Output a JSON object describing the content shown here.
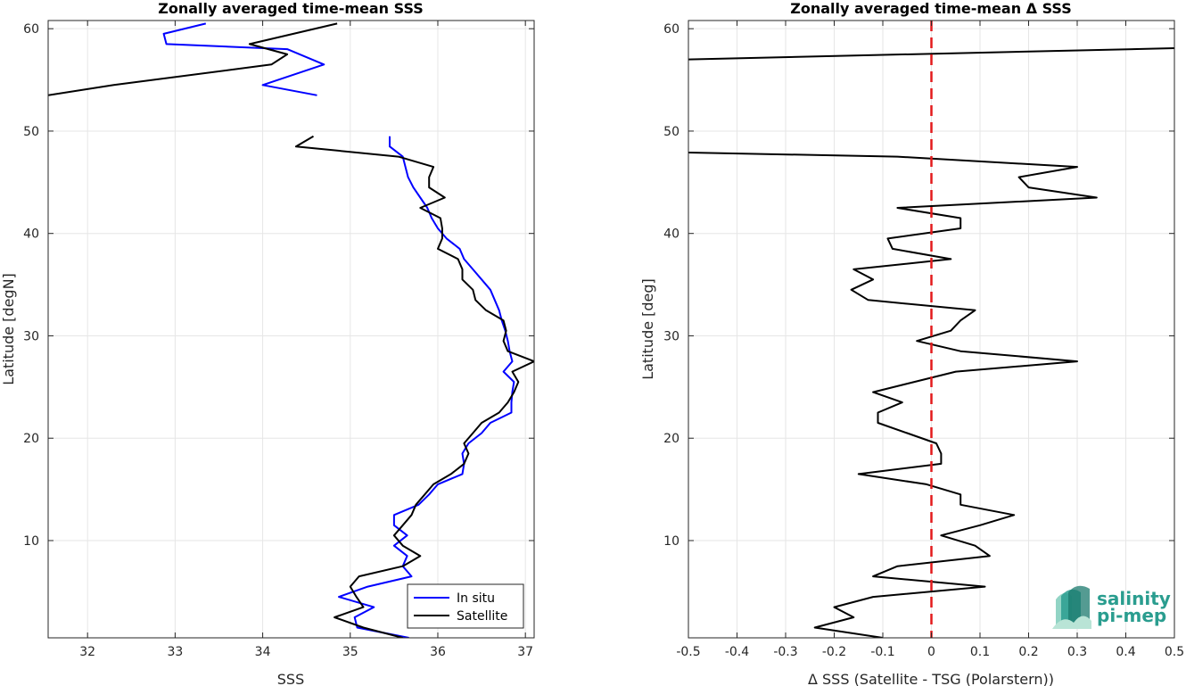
{
  "chart_data": [
    {
      "type": "line",
      "title": "Zonally averaged time-mean SSS",
      "xlabel": "SSS",
      "ylabel": "Latitude [degN]",
      "xlim": [
        31.55,
        37.1
      ],
      "ylim": [
        0.5,
        60.8
      ],
      "xticks": [
        32,
        33,
        34,
        35,
        36,
        37
      ],
      "yticks": [
        10,
        20,
        30,
        40,
        50,
        60
      ],
      "grid": true,
      "legend_position": "bottom-right",
      "series": [
        {
          "name": "In situ",
          "color": "#0000ff",
          "segments": [
            [
              [
                33.35,
                60.5
              ],
              [
                32.87,
                59.5
              ],
              [
                32.9,
                58.5
              ],
              [
                34.28,
                58.0
              ],
              [
                34.7,
                56.5
              ],
              [
                34.0,
                54.5
              ],
              [
                34.62,
                53.5
              ]
            ],
            [
              [
                35.45,
                49.5
              ],
              [
                35.45,
                48.5
              ],
              [
                35.6,
                47.5
              ],
              [
                35.66,
                45.5
              ],
              [
                35.72,
                44.5
              ],
              [
                35.8,
                43.5
              ],
              [
                35.88,
                42.5
              ],
              [
                35.93,
                41.5
              ],
              [
                36.0,
                40.5
              ],
              [
                36.1,
                39.5
              ],
              [
                36.25,
                38.5
              ],
              [
                36.3,
                37.5
              ],
              [
                36.4,
                36.5
              ],
              [
                36.5,
                35.5
              ],
              [
                36.6,
                34.5
              ],
              [
                36.65,
                33.5
              ],
              [
                36.7,
                32.5
              ],
              [
                36.73,
                31.5
              ],
              [
                36.77,
                30.5
              ],
              [
                36.8,
                29.5
              ],
              [
                36.82,
                28.5
              ],
              [
                36.85,
                27.5
              ],
              [
                36.75,
                26.5
              ],
              [
                36.87,
                25.5
              ],
              [
                36.85,
                24.5
              ],
              [
                36.84,
                23.5
              ],
              [
                36.84,
                22.5
              ],
              [
                36.6,
                21.5
              ],
              [
                36.5,
                20.5
              ],
              [
                36.35,
                19.5
              ],
              [
                36.28,
                18.5
              ],
              [
                36.3,
                17.5
              ],
              [
                36.28,
                16.5
              ],
              [
                36.0,
                15.5
              ],
              [
                35.9,
                14.5
              ],
              [
                35.78,
                13.5
              ],
              [
                35.5,
                12.5
              ],
              [
                35.5,
                11.5
              ],
              [
                35.65,
                10.5
              ],
              [
                35.5,
                9.5
              ],
              [
                35.65,
                8.5
              ],
              [
                35.6,
                7.5
              ],
              [
                35.7,
                6.5
              ],
              [
                35.2,
                5.5
              ],
              [
                34.87,
                4.5
              ],
              [
                35.27,
                3.5
              ],
              [
                35.05,
                2.5
              ],
              [
                35.08,
                1.5
              ],
              [
                35.67,
                0.5
              ]
            ]
          ]
        },
        {
          "name": "Satellite",
          "color": "#000000",
          "segments": [
            [
              [
                34.85,
                60.5
              ],
              [
                33.85,
                58.5
              ],
              [
                34.28,
                57.5
              ],
              [
                34.1,
                56.5
              ],
              [
                32.3,
                54.5
              ],
              [
                31.55,
                53.5
              ]
            ],
            [
              [
                34.58,
                49.5
              ],
              [
                34.38,
                48.5
              ],
              [
                35.55,
                47.5
              ],
              [
                35.95,
                46.5
              ],
              [
                35.9,
                45.5
              ],
              [
                35.9,
                44.5
              ],
              [
                36.08,
                43.5
              ],
              [
                35.8,
                42.5
              ],
              [
                36.03,
                41.5
              ],
              [
                36.05,
                40.5
              ],
              [
                36.05,
                39.5
              ],
              [
                36.0,
                38.5
              ],
              [
                36.23,
                37.5
              ],
              [
                36.28,
                36.5
              ],
              [
                36.28,
                35.5
              ],
              [
                36.4,
                34.5
              ],
              [
                36.43,
                33.5
              ],
              [
                36.55,
                32.5
              ],
              [
                36.75,
                31.5
              ],
              [
                36.78,
                30.5
              ],
              [
                36.75,
                29.5
              ],
              [
                36.8,
                28.5
              ],
              [
                37.1,
                27.5
              ],
              [
                36.85,
                26.5
              ],
              [
                36.92,
                25.5
              ],
              [
                36.87,
                24.5
              ],
              [
                36.8,
                23.5
              ],
              [
                36.7,
                22.5
              ],
              [
                36.5,
                21.5
              ],
              [
                36.4,
                20.5
              ],
              [
                36.3,
                19.5
              ],
              [
                36.35,
                18.5
              ],
              [
                36.3,
                17.5
              ],
              [
                36.15,
                16.5
              ],
              [
                35.95,
                15.5
              ],
              [
                35.85,
                14.5
              ],
              [
                35.75,
                13.5
              ],
              [
                35.7,
                12.5
              ],
              [
                35.6,
                11.5
              ],
              [
                35.5,
                10.5
              ],
              [
                35.6,
                9.5
              ],
              [
                35.8,
                8.5
              ],
              [
                35.6,
                7.5
              ],
              [
                35.1,
                6.5
              ],
              [
                35.0,
                5.5
              ],
              [
                35.07,
                4.5
              ],
              [
                35.15,
                3.5
              ],
              [
                34.82,
                2.5
              ],
              [
                35.15,
                1.5
              ],
              [
                35.6,
                0.5
              ]
            ]
          ]
        }
      ]
    },
    {
      "type": "line",
      "title": "Zonally averaged time-mean Δ SSS",
      "xlabel": "Δ SSS (Satellite - TSG (Polarstern))",
      "ylabel": "Latitude [deg]",
      "xlim": [
        -0.5,
        0.5
      ],
      "ylim": [
        0.5,
        60.8
      ],
      "xticks": [
        -0.5,
        -0.4,
        -0.3,
        -0.2,
        -0.1,
        0,
        0.1,
        0.2,
        0.3,
        0.4,
        0.5
      ],
      "xticklabels": [
        "-0.5",
        "-0.4",
        "-0.3",
        "-0.2",
        "-0.1",
        "0",
        "0.1",
        "0.2",
        "0.3",
        "0.4",
        "0.5"
      ],
      "yticks": [
        10,
        20,
        30,
        40,
        50,
        60
      ],
      "grid": true,
      "reference_line": {
        "x": 0,
        "color": "#e31a1c",
        "style": "dashed"
      },
      "series": [
        {
          "color": "#000000",
          "segments": [
            [
              [
                -0.5,
                57.0
              ],
              [
                0.5,
                58.1
              ]
            ],
            [
              [
                -0.5,
                47.9
              ],
              [
                -0.07,
                47.5
              ],
              [
                0.3,
                46.5
              ],
              [
                0.18,
                45.5
              ],
              [
                0.2,
                44.5
              ],
              [
                0.34,
                43.5
              ],
              [
                -0.07,
                42.5
              ],
              [
                0.06,
                41.5
              ],
              [
                0.06,
                40.5
              ],
              [
                -0.09,
                39.5
              ],
              [
                -0.08,
                38.5
              ],
              [
                0.04,
                37.5
              ],
              [
                -0.16,
                36.5
              ],
              [
                -0.12,
                35.5
              ],
              [
                -0.165,
                34.5
              ],
              [
                -0.13,
                33.5
              ],
              [
                0.09,
                32.5
              ],
              [
                0.06,
                31.5
              ],
              [
                0.04,
                30.5
              ],
              [
                -0.03,
                29.5
              ],
              [
                0.06,
                28.5
              ],
              [
                0.3,
                27.5
              ],
              [
                0.05,
                26.5
              ],
              [
                -0.12,
                24.5
              ],
              [
                -0.06,
                23.5
              ],
              [
                -0.11,
                22.5
              ],
              [
                -0.11,
                21.5
              ],
              [
                -0.05,
                20.5
              ],
              [
                0.01,
                19.5
              ],
              [
                0.02,
                18.5
              ],
              [
                0.02,
                17.5
              ],
              [
                -0.15,
                16.5
              ],
              [
                -0.01,
                15.5
              ],
              [
                0.06,
                14.5
              ],
              [
                0.06,
                13.5
              ],
              [
                0.17,
                12.5
              ],
              [
                0.1,
                11.5
              ],
              [
                0.02,
                10.5
              ],
              [
                0.09,
                9.5
              ],
              [
                0.12,
                8.5
              ],
              [
                -0.07,
                7.5
              ],
              [
                -0.12,
                6.5
              ],
              [
                0.11,
                5.5
              ],
              [
                -0.12,
                4.5
              ],
              [
                -0.2,
                3.5
              ],
              [
                -0.16,
                2.5
              ],
              [
                -0.24,
                1.5
              ],
              [
                -0.1,
                0.5
              ]
            ]
          ]
        }
      ]
    }
  ],
  "legend": {
    "entries": [
      {
        "label": "In situ",
        "color": "#0000ff"
      },
      {
        "label": "Satellite",
        "color": "#000000"
      }
    ]
  },
  "logo": {
    "line1": "salinity",
    "line2": "pi-mep",
    "colors": [
      "#2a9d8f",
      "#7fcdbb",
      "#1b7a6e"
    ]
  }
}
